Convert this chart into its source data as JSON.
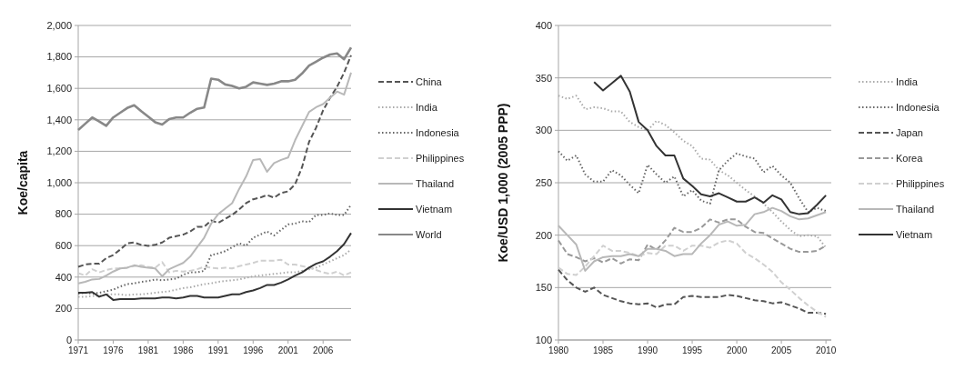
{
  "chart_data": [
    {
      "type": "line",
      "ylabel": "Koe/capita",
      "x": [
        1971,
        1972,
        1973,
        1974,
        1975,
        1976,
        1977,
        1978,
        1979,
        1980,
        1981,
        1982,
        1983,
        1984,
        1985,
        1986,
        1987,
        1988,
        1989,
        1990,
        1991,
        1992,
        1993,
        1994,
        1995,
        1996,
        1997,
        1998,
        1999,
        2000,
        2001,
        2002,
        2003,
        2004,
        2005,
        2006,
        2007,
        2008,
        2009,
        2010
      ],
      "xlim": [
        1971,
        2010
      ],
      "xticks": [
        1971,
        1976,
        1981,
        1986,
        1991,
        1996,
        2001,
        2006
      ],
      "ylim": [
        0,
        2000
      ],
      "yticks": [
        {
          "value": 0,
          "label": "0"
        },
        {
          "value": 200,
          "label": "200"
        },
        {
          "value": 400,
          "label": "400"
        },
        {
          "value": 600,
          "label": "600"
        },
        {
          "value": 800,
          "label": "800"
        },
        {
          "value": 1000,
          "label": "1,000"
        },
        {
          "value": 1200,
          "label": "1,200"
        },
        {
          "value": 1400,
          "label": "1,400"
        },
        {
          "value": 1600,
          "label": "1,600"
        },
        {
          "value": 1800,
          "label": "1,800"
        },
        {
          "value": 2000,
          "label": "2,000"
        }
      ],
      "grid": "y",
      "legend": "right",
      "marker": "none",
      "series": [
        {
          "name": "China",
          "color": "#555555",
          "line_style": "dashed",
          "values": [
            465,
            480,
            485,
            485,
            520,
            540,
            575,
            615,
            620,
            605,
            598,
            605,
            620,
            650,
            660,
            670,
            690,
            720,
            720,
            760,
            745,
            770,
            795,
            830,
            870,
            895,
            905,
            922,
            905,
            935,
            945,
            990,
            1100,
            1260,
            1350,
            1460,
            1540,
            1610,
            1700,
            1810
          ]
        },
        {
          "name": "India",
          "color": "#aaaaaa",
          "line_style": "dotted",
          "values": [
            275,
            275,
            280,
            280,
            290,
            290,
            290,
            285,
            290,
            290,
            295,
            300,
            305,
            310,
            320,
            330,
            335,
            345,
            355,
            360,
            370,
            375,
            380,
            385,
            395,
            405,
            410,
            415,
            420,
            425,
            430,
            430,
            440,
            450,
            460,
            480,
            500,
            520,
            540,
            575
          ]
        },
        {
          "name": "Indonesia",
          "color": "#666666",
          "line_style": "dotted",
          "values": [
            295,
            300,
            295,
            300,
            310,
            320,
            340,
            355,
            360,
            370,
            375,
            385,
            380,
            385,
            390,
            415,
            430,
            430,
            440,
            540,
            550,
            565,
            590,
            615,
            600,
            650,
            670,
            690,
            665,
            700,
            735,
            740,
            755,
            750,
            795,
            795,
            805,
            795,
            795,
            860
          ]
        },
        {
          "name": "Philippines",
          "color": "#d0d0d0",
          "line_style": "dashed",
          "values": [
            425,
            410,
            450,
            430,
            445,
            455,
            455,
            460,
            470,
            475,
            465,
            460,
            495,
            430,
            440,
            435,
            440,
            450,
            465,
            460,
            455,
            460,
            455,
            470,
            480,
            490,
            505,
            505,
            505,
            510,
            480,
            480,
            470,
            460,
            445,
            430,
            420,
            435,
            410,
            430
          ]
        },
        {
          "name": "Thailand",
          "color": "#b8b8b8",
          "line_style": "solid",
          "values": [
            360,
            370,
            385,
            388,
            410,
            435,
            455,
            460,
            475,
            465,
            460,
            455,
            405,
            450,
            470,
            490,
            530,
            590,
            650,
            740,
            800,
            835,
            870,
            960,
            1040,
            1145,
            1150,
            1070,
            1125,
            1145,
            1160,
            1270,
            1360,
            1450,
            1480,
            1500,
            1540,
            1580,
            1560,
            1700
          ]
        },
        {
          "name": "Vietnam",
          "color": "#333333",
          "line_style": "solid",
          "values": [
            300,
            300,
            305,
            275,
            290,
            255,
            260,
            260,
            260,
            265,
            265,
            265,
            270,
            270,
            265,
            270,
            280,
            280,
            270,
            270,
            270,
            280,
            290,
            290,
            305,
            315,
            330,
            350,
            350,
            365,
            385,
            410,
            430,
            460,
            485,
            500,
            530,
            565,
            610,
            680
          ]
        },
        {
          "name": "World",
          "color": "#888888",
          "line_style": "solid",
          "values": [
            1335,
            1375,
            1415,
            1390,
            1362,
            1415,
            1445,
            1475,
            1493,
            1455,
            1420,
            1385,
            1370,
            1405,
            1415,
            1415,
            1445,
            1470,
            1478,
            1662,
            1655,
            1625,
            1615,
            1600,
            1610,
            1638,
            1630,
            1622,
            1630,
            1645,
            1645,
            1655,
            1695,
            1745,
            1770,
            1795,
            1815,
            1822,
            1785,
            1860
          ]
        }
      ]
    },
    {
      "type": "line",
      "ylabel": "Koe/USD 1,000 (2005 PPP)",
      "x": [
        1980,
        1981,
        1982,
        1983,
        1984,
        1985,
        1986,
        1987,
        1988,
        1989,
        1990,
        1991,
        1992,
        1993,
        1994,
        1995,
        1996,
        1997,
        1998,
        1999,
        2000,
        2001,
        2002,
        2003,
        2004,
        2005,
        2006,
        2007,
        2008,
        2009,
        2010
      ],
      "xlim": [
        1980,
        2010.6
      ],
      "xticks": [
        1980,
        1985,
        1990,
        1995,
        2000,
        2005,
        2010
      ],
      "ylim": [
        100,
        400
      ],
      "yticks": [
        100,
        150,
        200,
        250,
        300,
        350,
        400
      ],
      "grid": "y",
      "legend": "right",
      "marker": "none",
      "series": [
        {
          "name": "India",
          "color": "#aaaaaa",
          "line_style": "dotted",
          "values": [
            333,
            330,
            333,
            320,
            322,
            321,
            318,
            318,
            308,
            303,
            300,
            309,
            305,
            298,
            290,
            285,
            273,
            272,
            262,
            257,
            250,
            243,
            237,
            230,
            222,
            213,
            205,
            199,
            200,
            199,
            188
          ]
        },
        {
          "name": "Indonesia",
          "color": "#666666",
          "line_style": "dotted",
          "values": [
            280,
            271,
            276,
            258,
            251,
            251,
            262,
            257,
            248,
            240,
            267,
            258,
            250,
            256,
            237,
            243,
            233,
            230,
            262,
            271,
            278,
            275,
            273,
            260,
            266,
            257,
            250,
            235,
            222,
            226,
            223
          ]
        },
        {
          "name": "Japan",
          "color": "#555555",
          "line_style": "dashed",
          "values": [
            167,
            157,
            150,
            146,
            150,
            143,
            140,
            137,
            135,
            134,
            135,
            131,
            134,
            134,
            141,
            142,
            141,
            141,
            141,
            143,
            142,
            140,
            138,
            137,
            135,
            136,
            133,
            130,
            126,
            126,
            125
          ]
        },
        {
          "name": "Korea",
          "color": "#999999",
          "line_style": "dashed",
          "values": [
            195,
            182,
            179,
            175,
            178,
            174,
            178,
            173,
            177,
            176,
            191,
            186,
            195,
            207,
            203,
            203,
            207,
            215,
            212,
            215,
            215,
            208,
            203,
            202,
            197,
            192,
            187,
            184,
            184,
            185,
            190
          ]
        },
        {
          "name": "Philippines",
          "color": "#d0d0d0",
          "line_style": "dashed",
          "values": [
            169,
            163,
            162,
            170,
            180,
            190,
            185,
            185,
            183,
            180,
            183,
            182,
            190,
            190,
            185,
            190,
            190,
            188,
            193,
            195,
            192,
            183,
            178,
            172,
            165,
            155,
            148,
            140,
            133,
            127,
            122
          ]
        },
        {
          "name": "Thailand",
          "color": "#b8b8b8",
          "line_style": "solid",
          "values": [
            209,
            200,
            191,
            166,
            175,
            179,
            180,
            180,
            182,
            180,
            187,
            187,
            185,
            180,
            182,
            182,
            192,
            200,
            210,
            213,
            209,
            210,
            220,
            222,
            226,
            223,
            218,
            215,
            216,
            219,
            222
          ]
        },
        {
          "name": "Vietnam",
          "color": "#333333",
          "line_style": "solid",
          "values": [
            null,
            null,
            null,
            null,
            346,
            338,
            345,
            352,
            337,
            308,
            300,
            285,
            276,
            276,
            254,
            247,
            239,
            237,
            240,
            236,
            232,
            232,
            236,
            231,
            238,
            234,
            222,
            220,
            221,
            229,
            238
          ]
        }
      ]
    }
  ]
}
